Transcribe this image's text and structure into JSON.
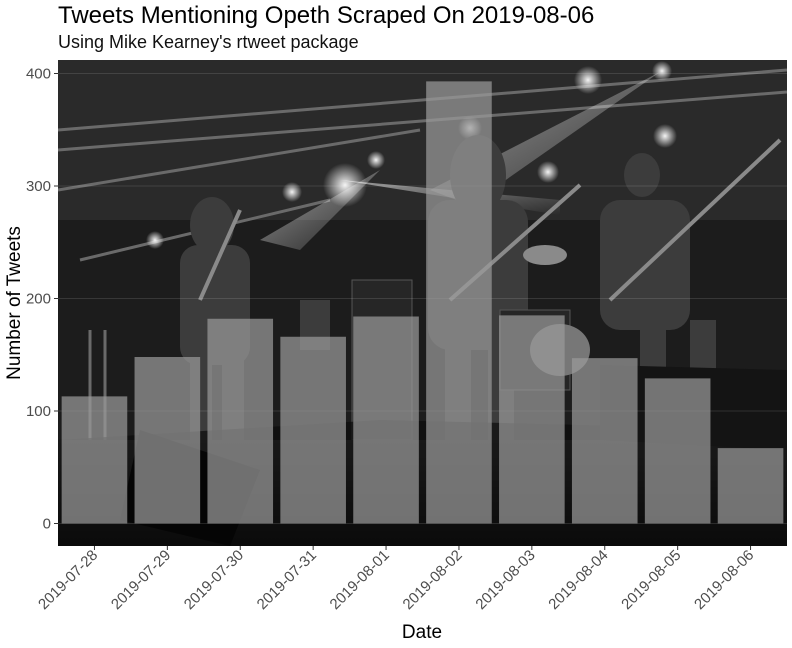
{
  "chart_data": {
    "type": "bar",
    "title": "Tweets Mentioning Opeth Scraped On 2019-08-06",
    "subtitle": "Using Mike Kearney's rtweet package",
    "xlabel": "Date",
    "ylabel": "Number of Tweets",
    "categories": [
      "2019-07-28",
      "2019-07-29",
      "2019-07-30",
      "2019-07-31",
      "2019-08-01",
      "2019-08-02",
      "2019-08-03",
      "2019-08-04",
      "2019-08-05",
      "2019-08-06"
    ],
    "values": [
      113,
      148,
      182,
      166,
      184,
      393,
      185,
      147,
      129,
      67
    ],
    "yticks": [
      0,
      100,
      200,
      300,
      400
    ],
    "ylim": [
      -20,
      412
    ],
    "grid": true,
    "bar_color": "#9a9a9a",
    "background": "concert photo (grayscale)"
  }
}
